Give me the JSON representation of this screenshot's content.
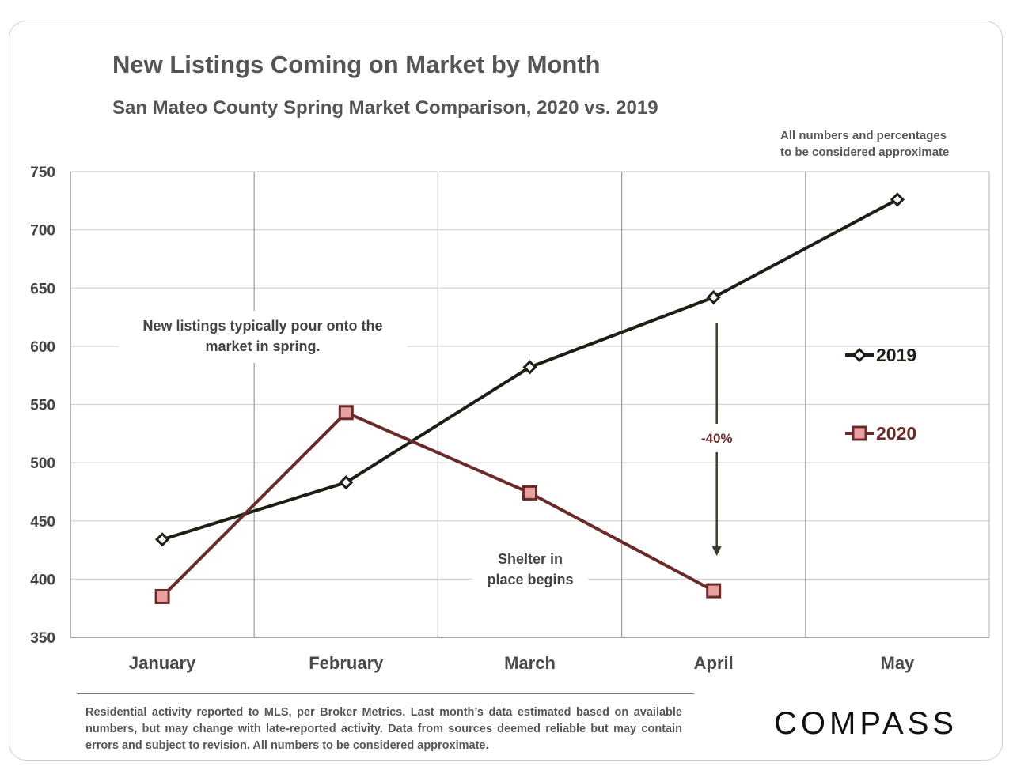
{
  "title": "New Listings Coming on Market by Month",
  "subtitle": "San Mateo County Spring Market Comparison, 2020 vs. 2019",
  "disclaimer_lines": [
    "All numbers and percentages",
    "to be considered approximate"
  ],
  "footnote": "Residential activity reported to MLS, per Broker Metrics. Last month’s data estimated based on available numbers, but may change with late-reported activity. Data from sources deemed reliable but may contain errors and subject to revision. All numbers to be considered approximate.",
  "logo_text": "COMPASS",
  "colors": {
    "series_2019": "#1c1f14",
    "series_2020": "#6b2a2a",
    "marker_2020_fill": "#e8a0a0",
    "grid": "#d6d6d6",
    "text": "#555555"
  },
  "chart_data": {
    "type": "line",
    "title": "New Listings Coming on Market by Month",
    "categories": [
      "January",
      "February",
      "March",
      "April",
      "May"
    ],
    "ylim": [
      350,
      750
    ],
    "yticks": [
      350,
      400,
      450,
      500,
      550,
      600,
      650,
      700,
      750
    ],
    "series": [
      {
        "name": "2019",
        "values": [
          434,
          483,
          582,
          642,
          726
        ],
        "marker": "diamond"
      },
      {
        "name": "2020",
        "values": [
          385,
          543,
          474,
          390,
          null
        ],
        "marker": "square"
      }
    ],
    "annotations": [
      {
        "id": "spring",
        "lines": [
          "New listings typically pour onto the",
          "market in spring."
        ]
      },
      {
        "id": "shelter",
        "lines": [
          "Shelter in",
          "place  begins"
        ]
      },
      {
        "id": "change",
        "text": "-40%",
        "category": "April",
        "from": 642,
        "to": 390
      }
    ],
    "legend_position": "right"
  }
}
